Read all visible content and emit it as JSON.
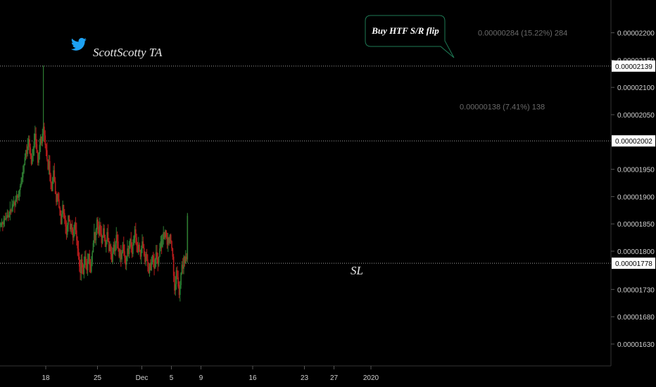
{
  "colors": {
    "background": "#000000",
    "up_candle": "#2e7d32",
    "down_candle": "#b71c1c",
    "axis_text": "#d0d0d0",
    "hline": "#9e9e9e",
    "label_bg": "#ffffff",
    "label_text": "#000000",
    "measure_text": "#6b6b6b",
    "callout_border": "#1e7a55",
    "twitter": "#1da1f2"
  },
  "watermark": {
    "icon": "twitter-bird-icon",
    "text": "ScottScotty TA"
  },
  "callout": {
    "text": "Buy HTF S/R flip"
  },
  "sl_label": "SL",
  "chart_data": {
    "type": "candlestick",
    "title": "",
    "xlabel": "",
    "ylabel": "",
    "x_ticks": [
      {
        "label": "18",
        "t": 0.0
      },
      {
        "label": "25",
        "t": 7.0
      },
      {
        "label": "Dec",
        "t": 13.0
      },
      {
        "label": "5",
        "t": 17.0
      },
      {
        "label": "9",
        "t": 21.0
      },
      {
        "label": "16",
        "t": 28.0
      },
      {
        "label": "23",
        "t": 35.0
      },
      {
        "label": "27",
        "t": 39.0
      },
      {
        "label": "2020",
        "t": 44.0
      }
    ],
    "y_ticks": [
      "0.00002200",
      "0.00002150",
      "0.00002100",
      "0.00002050",
      "0.00001950",
      "0.00001900",
      "0.00001850",
      "0.00001800",
      "0.00001730",
      "0.00001680",
      "0.00001630"
    ],
    "y_tick_values": [
      2.2e-05,
      2.15e-05,
      2.1e-05,
      2.05e-05,
      1.95e-05,
      1.9e-05,
      1.85e-05,
      1.8e-05,
      1.73e-05,
      1.68e-05,
      1.63e-05
    ],
    "ylim": [
      1.59e-05,
      2.26e-05
    ],
    "horizontal_lines": [
      {
        "value": 2.139e-05,
        "label": "0.00002139"
      },
      {
        "value": 2.002e-05,
        "label": "0.00002002"
      },
      {
        "value": 1.778e-05,
        "label": "0.00001778"
      }
    ],
    "measurements": [
      {
        "text": "0.00000284 (15.22%) 284",
        "y": 2.2e-05
      },
      {
        "text": "0.00000138 (7.41%) 138",
        "y": 2.065e-05
      }
    ],
    "candles_t_start": -6.2,
    "candles_t_step": 0.125,
    "closes": [
      1847,
      1851,
      1853,
      1849,
      1856,
      1860,
      1858,
      1863,
      1866,
      1862,
      1870,
      1876,
      1873,
      1880,
      1886,
      1890,
      1884,
      1895,
      1902,
      1898,
      1905,
      1912,
      1920,
      1928,
      1935,
      1945,
      1958,
      1972,
      1985,
      1978,
      1992,
      2005,
      1990,
      1975,
      1960,
      1975,
      1988,
      2002,
      2015,
      1996,
      1980,
      1962,
      1978,
      1995,
      2010,
      1998,
      2015,
      2028,
      2012,
      1995,
      1985,
      1968,
      1950,
      1965,
      1940,
      1925,
      1910,
      1935,
      1948,
      1928,
      1905,
      1890,
      1905,
      1895,
      1880,
      1865,
      1850,
      1868,
      1885,
      1870,
      1860,
      1845,
      1830,
      1848,
      1865,
      1855,
      1840,
      1850,
      1835,
      1825,
      1840,
      1852,
      1838,
      1820,
      1805,
      1790,
      1772,
      1760,
      1785,
      1770,
      1758,
      1775,
      1790,
      1778,
      1765,
      1782,
      1795,
      1775,
      1762,
      1780,
      1798,
      1815,
      1835,
      1820,
      1840,
      1858,
      1845,
      1830,
      1848,
      1832,
      1815,
      1828,
      1842,
      1825,
      1808,
      1820,
      1835,
      1818,
      1800,
      1812,
      1795,
      1780,
      1798,
      1812,
      1800,
      1815,
      1830,
      1818,
      1805,
      1790,
      1802,
      1785,
      1798,
      1812,
      1800,
      1788,
      1775,
      1790,
      1805,
      1795,
      1810,
      1822,
      1808,
      1795,
      1812,
      1828,
      1840,
      1825,
      1810,
      1798,
      1812,
      1802,
      1790,
      1805,
      1818,
      1806,
      1792,
      1780,
      1795,
      1785,
      1772,
      1760,
      1778,
      1765,
      1780,
      1792,
      1780,
      1768,
      1785,
      1798,
      1788,
      1776,
      1790,
      1805,
      1818,
      1808,
      1822,
      1835,
      1825,
      1838,
      1826,
      1812,
      1825,
      1815,
      1830,
      1818,
      1805,
      1790,
      1755,
      1728,
      1740,
      1765,
      1752,
      1735,
      1720,
      1738,
      1760,
      1775,
      1768,
      1790,
      1778,
      1790,
      1785,
      1865
    ]
  }
}
